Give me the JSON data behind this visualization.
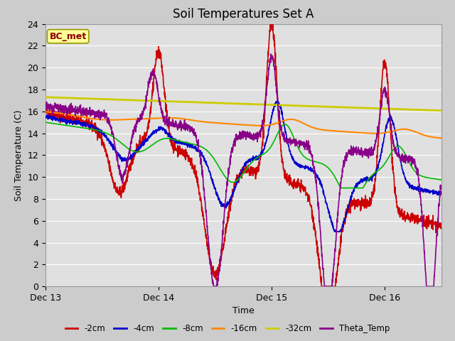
{
  "title": "Soil Temperatures Set A",
  "xlabel": "Time",
  "ylabel": "Soil Temperature (C)",
  "annotation": "BC_met",
  "ylim": [
    0,
    24
  ],
  "xlim": [
    0,
    3.5
  ],
  "xticks": [
    0,
    1,
    2,
    3
  ],
  "xticklabels": [
    "Dec 13",
    "Dec 14",
    "Dec 15",
    "Dec 16"
  ],
  "yticks": [
    0,
    2,
    4,
    6,
    8,
    10,
    12,
    14,
    16,
    18,
    20,
    22,
    24
  ],
  "fig_bg_color": "#cccccc",
  "plot_bg_color": "#e0e0e0",
  "legend_entries": [
    "-2cm",
    "-4cm",
    "-8cm",
    "-16cm",
    "-32cm",
    "Theta_Temp"
  ],
  "line_colors": [
    "#cc0000",
    "#0000cc",
    "#00bb00",
    "#ff8800",
    "#cccc00",
    "#880088"
  ],
  "line_widths": [
    1.2,
    1.2,
    1.2,
    1.5,
    2.0,
    1.2
  ],
  "title_fontsize": 12,
  "label_fontsize": 9,
  "tick_fontsize": 9
}
